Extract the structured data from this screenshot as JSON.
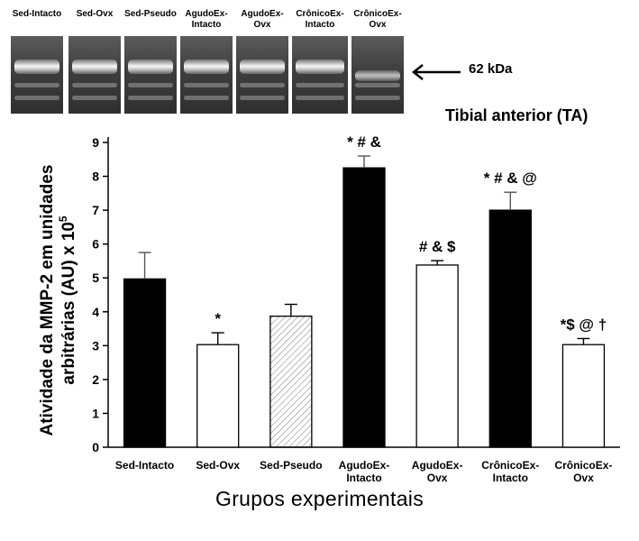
{
  "blot": {
    "lanes": [
      "Sed-Intacto",
      "Sed-Ovx",
      "Sed-Pseudo",
      "AgudoEx-\nIntacto",
      "AgudoEx-\nOvx",
      "CrônicoEx-\nIntacto",
      "CrônicoEx-\nOvx"
    ],
    "marker_label": "62 kDa"
  },
  "chart_data": {
    "type": "bar",
    "title": "Tibial anterior (TA)",
    "xlabel": "Grupos experimentais",
    "ylabel_line1": "Atividade da MMP-2 em unidades",
    "ylabel_line2": "arbitrárias  (AU) x 10",
    "ylabel_exponent": "5",
    "ylim": [
      0,
      9
    ],
    "yticks": [
      0,
      1,
      2,
      3,
      4,
      5,
      6,
      7,
      8,
      9
    ],
    "categories": [
      "Sed-Intacto",
      "Sed-Ovx",
      "Sed-Pseudo",
      "AgudoEx-\nIntacto",
      "AgudoEx-\nOvx",
      "CrônicoEx-\nIntacto",
      "CrônicoEx-\nOvx"
    ],
    "values": [
      4.97,
      3.03,
      3.87,
      8.25,
      5.38,
      7.0,
      3.03
    ],
    "errors": [
      0.78,
      0.35,
      0.35,
      0.35,
      0.13,
      0.53,
      0.18
    ],
    "fills": [
      "solid",
      "open",
      "hatched",
      "solid",
      "open",
      "solid",
      "open"
    ],
    "annotations": [
      "",
      "*",
      "",
      "* # &",
      "# & $",
      "* # & @",
      "*$ @ †"
    ],
    "colors": {
      "solid": "#000000",
      "open": "#ffffff",
      "hatch": "#9a9a9a"
    }
  }
}
